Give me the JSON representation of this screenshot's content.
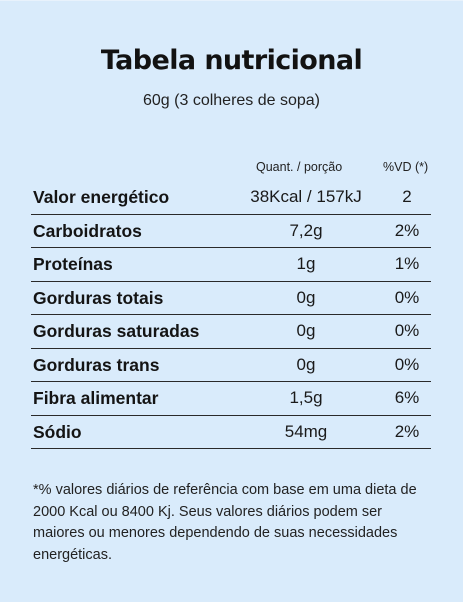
{
  "title": "Tabela nutricional",
  "serving": "60g (3 colheres de sopa)",
  "columns": {
    "quantity": "Quant. / porção",
    "daily_value": "%VD (*)"
  },
  "rows": [
    {
      "name": "Valor energético",
      "quantity": "38Kcal / 157kJ",
      "daily_value": "2"
    },
    {
      "name": "Carboidratos",
      "quantity": "7,2g",
      "daily_value": "2%"
    },
    {
      "name": "Proteínas",
      "quantity": "1g",
      "daily_value": "1%"
    },
    {
      "name": "Gorduras totais",
      "quantity": "0g",
      "daily_value": "0%"
    },
    {
      "name": "Gorduras saturadas",
      "quantity": "0g",
      "daily_value": "0%"
    },
    {
      "name": "Gorduras trans",
      "quantity": "0g",
      "daily_value": "0%"
    },
    {
      "name": "Fibra alimentar",
      "quantity": "1,5g",
      "daily_value": "6%"
    },
    {
      "name": "Sódio",
      "quantity": "54mg",
      "daily_value": "2%"
    }
  ],
  "footnote": "*% valores diários de referência com base em uma dieta de 2000 Kcal ou 8400 Kj. Seus valores diários podem ser maiores ou menores dependendo de suas necessidades energéticas.",
  "colors": {
    "background": "#d9ebfb",
    "text": "#141414",
    "rule": "#2a2a2a"
  }
}
